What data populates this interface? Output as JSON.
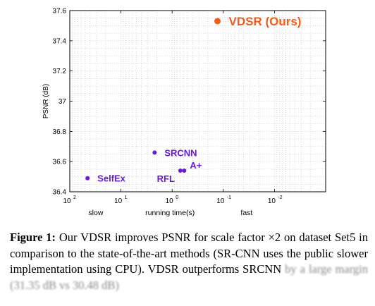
{
  "chart_data": {
    "type": "scatter",
    "ylabel": "PSNR (dB)",
    "xlabel": "running time(s)",
    "x_scale": "log",
    "x_reversed": true,
    "xlim": [
      100,
      0.001
    ],
    "ylim": [
      36.4,
      37.6
    ],
    "grid": true,
    "x_ticks": [
      {
        "base": "10",
        "exp": "2"
      },
      {
        "base": "10",
        "exp": "1"
      },
      {
        "base": "10",
        "exp": "0"
      },
      {
        "base": "10",
        "exp": "-1"
      },
      {
        "base": "10",
        "exp": "-2"
      }
    ],
    "x_tick_values": [
      100,
      10,
      1,
      0.1,
      0.01
    ],
    "y_ticks": [
      "36.4",
      "36.6",
      "36.8",
      "37",
      "37.2",
      "37.4",
      "37.6"
    ],
    "y_tick_values": [
      36.4,
      36.6,
      36.8,
      37.0,
      37.2,
      37.4,
      37.6
    ],
    "speed_labels": {
      "slow": "slow",
      "fast": "fast"
    },
    "points": [
      {
        "name": "SelfEx",
        "x": 45,
        "y": 36.49,
        "color": "#6a1bd6"
      },
      {
        "name": "SRCNN",
        "x": 2.2,
        "y": 36.66,
        "color": "#6a1bd6"
      },
      {
        "name": "RFL",
        "x": 0.69,
        "y": 36.54,
        "color": "#6a1bd6"
      },
      {
        "name": "A+",
        "x": 0.58,
        "y": 36.54,
        "color": "#6a1bd6"
      },
      {
        "name": "VDSR (Ours)",
        "x": 0.13,
        "y": 37.53,
        "color": "#f25c19"
      }
    ]
  },
  "caption": {
    "label": "Figure 1:",
    "text": " Our VDSR improves PSNR for scale factor ×2 on dataset Set5 in comparison to the state-of-the-art methods (SR-CNN uses the public slower implementation using CPU). VDSR outperforms SRCNN ",
    "faded": "by a large margin (31.35 dB vs 30.48 dB)"
  }
}
